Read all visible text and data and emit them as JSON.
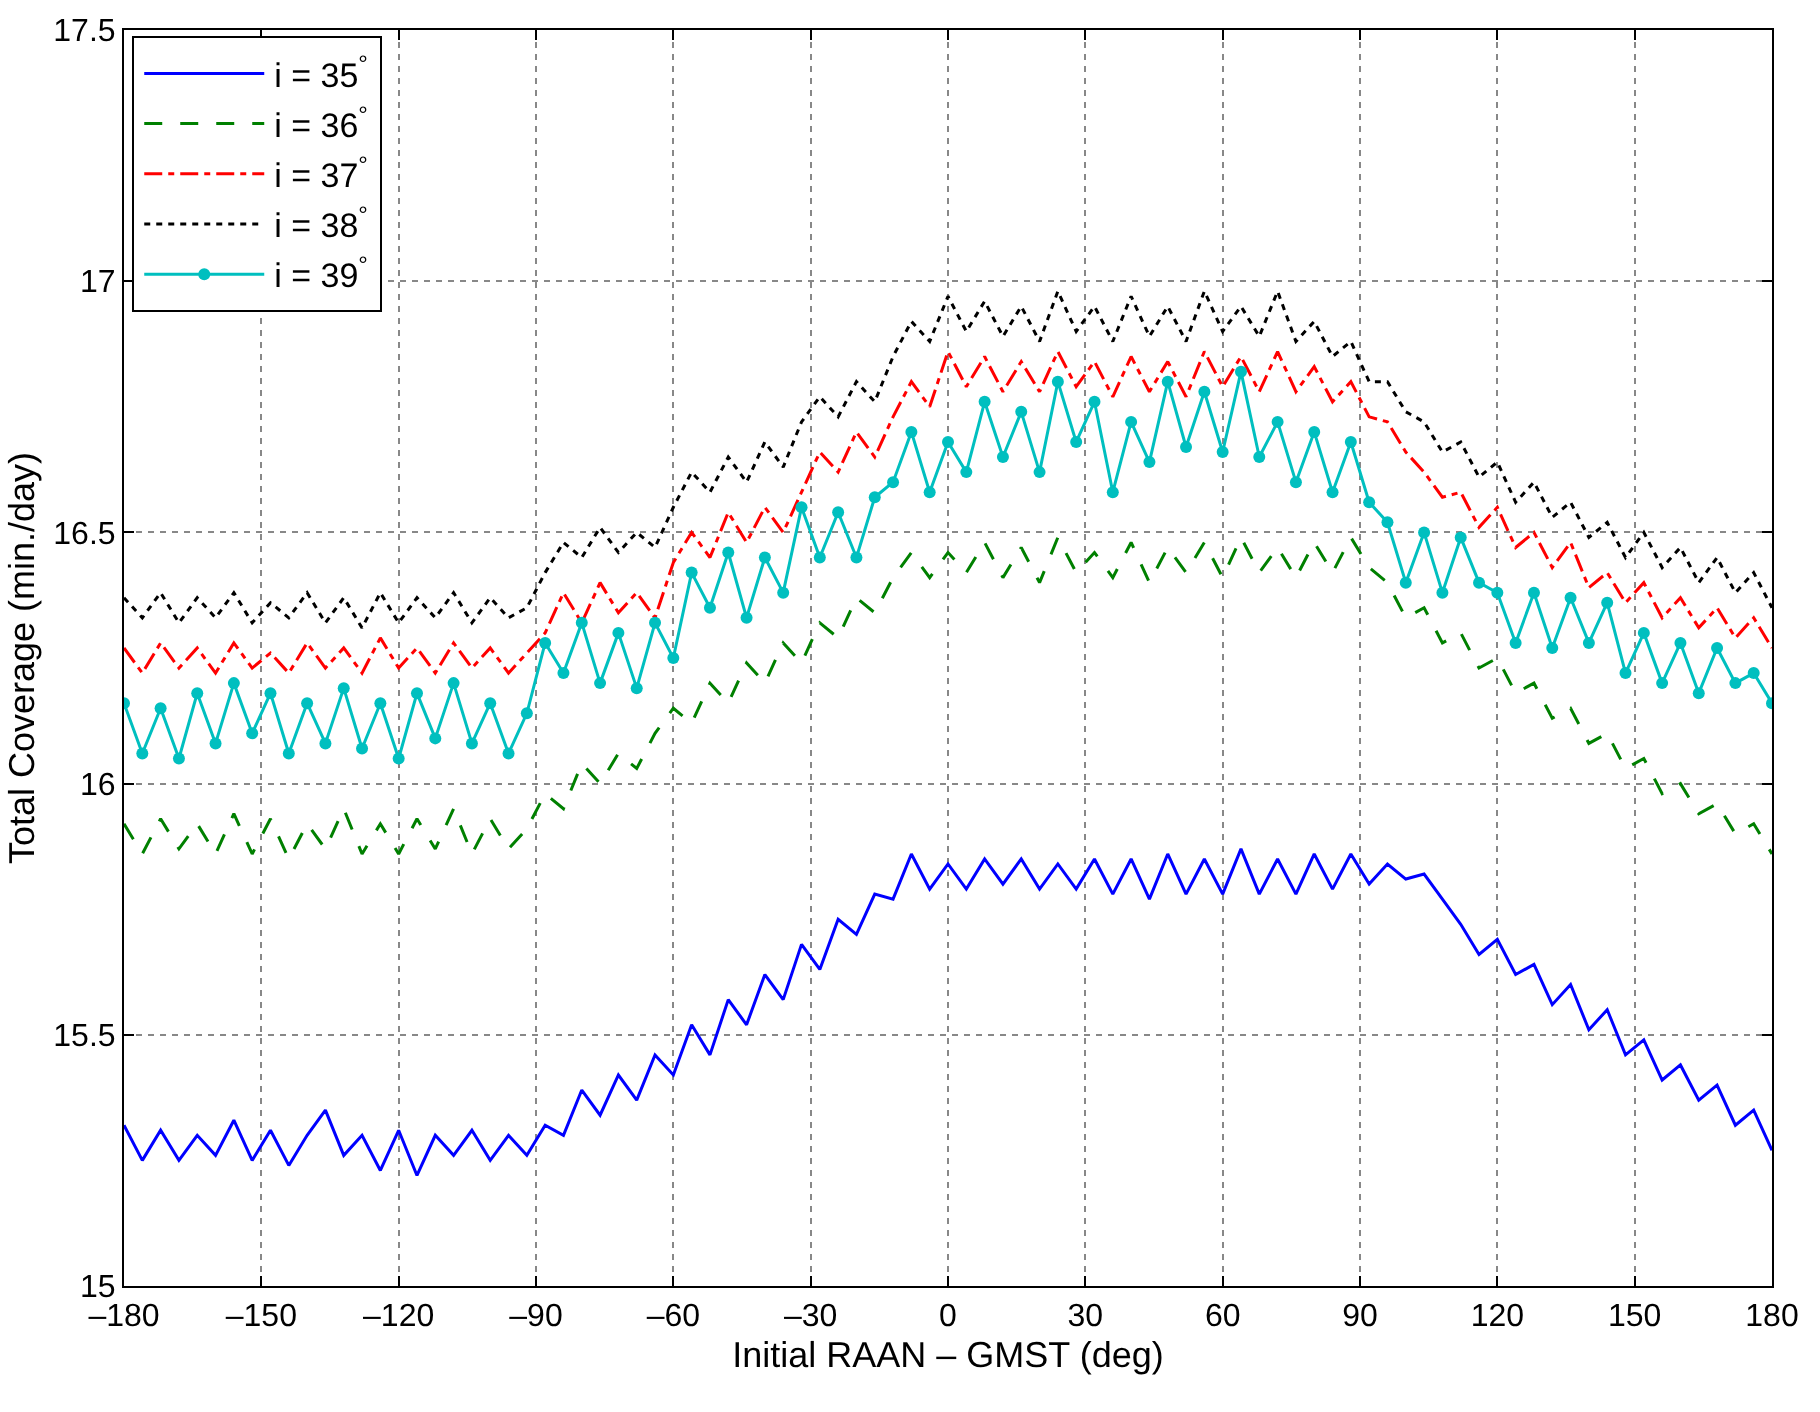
{
  "chart_data": {
    "type": "line",
    "xlabel": "Initial RAAN – GMST (deg)",
    "ylabel": "Total Coverage (min./day)",
    "xlim": [
      -180,
      180
    ],
    "xticks": [
      {
        "value": -180,
        "label": "–180"
      },
      {
        "value": -150,
        "label": "–150"
      },
      {
        "value": -120,
        "label": "–120"
      },
      {
        "value": -90,
        "label": "–90"
      },
      {
        "value": -60,
        "label": "–60"
      },
      {
        "value": -30,
        "label": "–30"
      },
      0,
      30,
      60,
      90,
      120,
      150,
      180
    ],
    "ylim": [
      15,
      17.5
    ],
    "yticks": [
      15,
      15.5,
      16,
      16.5,
      17,
      17.5
    ],
    "grid": true,
    "legend": "top left",
    "x": [
      -180,
      -176,
      -172,
      -168,
      -164,
      -160,
      -156,
      -152,
      -148,
      -144,
      -140,
      -136,
      -132,
      -128,
      -124,
      -120,
      -116,
      -112,
      -108,
      -104,
      -100,
      -96,
      -92,
      -88,
      -84,
      -80,
      -76,
      -72,
      -68,
      -64,
      -60,
      -56,
      -52,
      -48,
      -44,
      -40,
      -36,
      -32,
      -28,
      -24,
      -20,
      -16,
      -12,
      -8,
      -4,
      0,
      4,
      8,
      12,
      16,
      20,
      24,
      28,
      32,
      36,
      40,
      44,
      48,
      52,
      56,
      60,
      64,
      68,
      72,
      76,
      80,
      84,
      88,
      92,
      96,
      100,
      104,
      108,
      112,
      116,
      120,
      124,
      128,
      132,
      136,
      140,
      144,
      148,
      152,
      156,
      160,
      164,
      168,
      172,
      176,
      180
    ],
    "series": [
      {
        "name": "i = 35$^{°}$",
        "color": "#0000ff",
        "line_style": "solid",
        "marker": "none",
        "values": [
          15.32,
          15.25,
          15.31,
          15.25,
          15.3,
          15.26,
          15.33,
          15.25,
          15.31,
          15.24,
          15.3,
          15.35,
          15.26,
          15.3,
          15.23,
          15.31,
          15.22,
          15.3,
          15.26,
          15.31,
          15.25,
          15.3,
          15.26,
          15.32,
          15.3,
          15.39,
          15.34,
          15.42,
          15.37,
          15.46,
          15.42,
          15.52,
          15.46,
          15.57,
          15.52,
          15.62,
          15.57,
          15.68,
          15.63,
          15.73,
          15.7,
          15.78,
          15.77,
          15.86,
          15.79,
          15.84,
          15.79,
          15.85,
          15.8,
          15.85,
          15.79,
          15.84,
          15.79,
          15.85,
          15.78,
          15.85,
          15.77,
          15.86,
          15.78,
          15.85,
          15.78,
          15.87,
          15.78,
          15.85,
          15.78,
          15.86,
          15.79,
          15.86,
          15.8,
          15.84,
          15.81,
          15.82,
          15.77,
          15.72,
          15.66,
          15.69,
          15.62,
          15.64,
          15.56,
          15.6,
          15.51,
          15.55,
          15.46,
          15.49,
          15.41,
          15.44,
          15.37,
          15.4,
          15.32,
          15.35,
          15.27
        ]
      },
      {
        "name": "i = 36$^{°}$",
        "color": "#008000",
        "line_style": "dashed",
        "marker": "none",
        "values": [
          15.92,
          15.86,
          15.93,
          15.87,
          15.92,
          15.86,
          15.94,
          15.86,
          15.93,
          15.85,
          15.92,
          15.87,
          15.95,
          15.86,
          15.92,
          15.86,
          15.93,
          15.87,
          15.95,
          15.86,
          15.93,
          15.87,
          15.91,
          15.98,
          15.95,
          16.04,
          16.0,
          16.06,
          16.03,
          16.1,
          16.15,
          16.12,
          16.2,
          16.16,
          16.24,
          16.2,
          16.28,
          16.24,
          16.32,
          16.29,
          16.37,
          16.34,
          16.41,
          16.46,
          16.41,
          16.46,
          16.42,
          16.48,
          16.41,
          16.47,
          16.4,
          16.49,
          16.42,
          16.46,
          16.41,
          16.48,
          16.4,
          16.47,
          16.42,
          16.48,
          16.41,
          16.49,
          16.42,
          16.47,
          16.41,
          16.48,
          16.42,
          16.49,
          16.43,
          16.4,
          16.33,
          16.35,
          16.28,
          16.3,
          16.23,
          16.25,
          16.18,
          16.2,
          16.13,
          16.15,
          16.08,
          16.1,
          16.03,
          16.05,
          15.98,
          16.0,
          15.94,
          15.96,
          15.9,
          15.92,
          15.86
        ]
      },
      {
        "name": "i = 37$^{°}$",
        "color": "#ff0000",
        "line_style": "dashdot",
        "marker": "none",
        "values": [
          16.27,
          16.22,
          16.28,
          16.23,
          16.27,
          16.22,
          16.28,
          16.23,
          16.26,
          16.22,
          16.28,
          16.23,
          16.27,
          16.22,
          16.29,
          16.23,
          16.27,
          16.22,
          16.28,
          16.23,
          16.27,
          16.22,
          16.26,
          16.3,
          16.38,
          16.32,
          16.4,
          16.34,
          16.38,
          16.33,
          16.44,
          16.5,
          16.45,
          16.54,
          16.48,
          16.55,
          16.5,
          16.58,
          16.66,
          16.62,
          16.7,
          16.65,
          16.73,
          16.8,
          16.75,
          16.86,
          16.79,
          16.85,
          16.78,
          16.84,
          16.78,
          16.86,
          16.79,
          16.84,
          16.77,
          16.85,
          16.78,
          16.84,
          16.77,
          16.86,
          16.79,
          16.85,
          16.78,
          16.86,
          16.78,
          16.83,
          16.76,
          16.8,
          16.73,
          16.72,
          16.66,
          16.62,
          16.57,
          16.58,
          16.51,
          16.55,
          16.47,
          16.5,
          16.43,
          16.48,
          16.39,
          16.42,
          16.36,
          16.4,
          16.33,
          16.37,
          16.31,
          16.35,
          16.29,
          16.33,
          16.27
        ]
      },
      {
        "name": "i = 38$^{°}$",
        "color": "#000000",
        "line_style": "dotted",
        "marker": "none",
        "values": [
          16.37,
          16.33,
          16.38,
          16.32,
          16.37,
          16.33,
          16.38,
          16.32,
          16.36,
          16.33,
          16.38,
          16.32,
          16.37,
          16.31,
          16.38,
          16.32,
          16.37,
          16.33,
          16.38,
          16.32,
          16.37,
          16.33,
          16.35,
          16.42,
          16.48,
          16.45,
          16.51,
          16.46,
          16.5,
          16.47,
          16.55,
          16.62,
          16.58,
          16.65,
          16.6,
          16.68,
          16.63,
          16.72,
          16.77,
          16.73,
          16.8,
          16.76,
          16.85,
          16.92,
          16.88,
          16.97,
          16.9,
          16.96,
          16.89,
          16.95,
          16.88,
          16.98,
          16.9,
          16.95,
          16.88,
          16.97,
          16.89,
          16.95,
          16.88,
          16.98,
          16.9,
          16.95,
          16.89,
          16.98,
          16.88,
          16.92,
          16.85,
          16.88,
          16.8,
          16.8,
          16.74,
          16.72,
          16.66,
          16.68,
          16.61,
          16.64,
          16.56,
          16.6,
          16.53,
          16.56,
          16.49,
          16.52,
          16.45,
          16.5,
          16.43,
          16.47,
          16.4,
          16.45,
          16.38,
          16.42,
          16.35
        ]
      },
      {
        "name": "i = 39$^{°}$",
        "color": "#00bfbf",
        "line_style": "solid",
        "marker": "circle",
        "values": [
          16.16,
          16.06,
          16.15,
          16.05,
          16.18,
          16.08,
          16.2,
          16.1,
          16.18,
          16.06,
          16.16,
          16.08,
          16.19,
          16.07,
          16.16,
          16.05,
          16.18,
          16.09,
          16.2,
          16.08,
          16.16,
          16.06,
          16.14,
          16.28,
          16.22,
          16.32,
          16.2,
          16.3,
          16.19,
          16.32,
          16.25,
          16.42,
          16.35,
          16.46,
          16.33,
          16.45,
          16.38,
          16.55,
          16.45,
          16.54,
          16.45,
          16.57,
          16.6,
          16.7,
          16.58,
          16.68,
          16.62,
          16.76,
          16.65,
          16.74,
          16.62,
          16.8,
          16.68,
          16.76,
          16.58,
          16.72,
          16.64,
          16.8,
          16.67,
          16.78,
          16.66,
          16.82,
          16.65,
          16.72,
          16.6,
          16.7,
          16.58,
          16.68,
          16.56,
          16.52,
          16.4,
          16.5,
          16.38,
          16.49,
          16.4,
          16.38,
          16.28,
          16.38,
          16.27,
          16.37,
          16.28,
          16.36,
          16.22,
          16.3,
          16.2,
          16.28,
          16.18,
          16.27,
          16.2,
          16.22,
          16.16
        ]
      }
    ]
  }
}
